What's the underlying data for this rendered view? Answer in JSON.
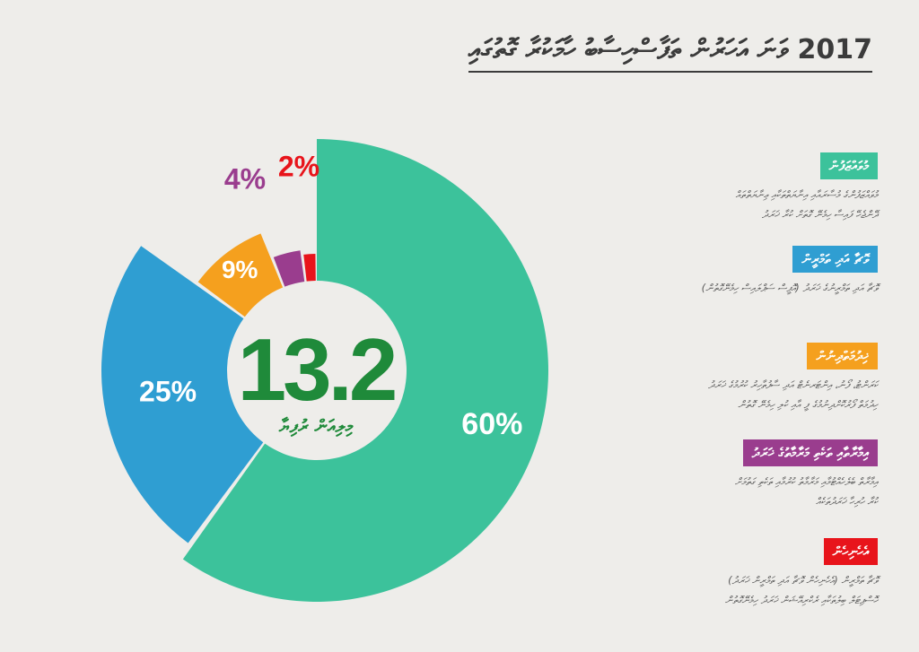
{
  "title": "2017 ވަނަ އަހަރުން ތަފާސްހިސާބު ހާމަކުރާ ގޮތުގައި",
  "colors": {
    "green": "#3cc29b",
    "blue": "#2f9ed2",
    "orange": "#f5a01e",
    "purple": "#9a3d8e",
    "red": "#e8141b",
    "center_text": "#1f8a3a"
  },
  "center": {
    "value": "13.2",
    "label": "މިލިއަން ރުފިޔާ"
  },
  "chart_data": {
    "type": "pie",
    "variant": "exploded-donut",
    "slices": [
      {
        "label": "60%",
        "value": 60,
        "color": "#3cc29b"
      },
      {
        "label": "25%",
        "value": 25,
        "color": "#2f9ed2"
      },
      {
        "label": "9%",
        "value": 9,
        "color": "#f5a01e"
      },
      {
        "label": "4%",
        "value": 4,
        "color": "#9a3d8e"
      },
      {
        "label": "2%",
        "value": 2,
        "color": "#e8141b"
      }
    ]
  },
  "legend": [
    {
      "tag": "މުވައްޒަފުން",
      "color": "#3cc29b",
      "desc": [
        "މުވައްޒަފުންގެ މުސާރައާއި އިނާޔަތްތަކާއި ޢިނާޔަތްތައް",
        "ދޭންޖެހޭ ފައިސާ ހިމެނޭ ގޮތަށް ކުރާ ޚަރަދު"
      ]
    },
    {
      "tag": "ވޮޗާ އަދި ތަމްރީން",
      "color": "#2f9ed2",
      "desc": [
        "ވޮޗާ އަދި ތަމްރީނުގެ ޚަރަދު (އޮފީސް ސަޕްލައިސް ހިމެނޭގޮތުން)"
      ]
    },
    {
      "tag": "ޚިދުމަތްދިނުން",
      "color": "#f5a01e",
      "desc": [
        "ކަރަންޓު، ފޯނު، އިންޓަރނެޓް އަދި ސާފުތާހިރު ކުރުމުގެ ޚަރަދު",
        "ހިދުމަތް ފޯރުކޮށްދިނުމުގެ ފީ އާއި ކުލި ހިމެނޭ ގޮތުން"
      ]
    },
    {
      "tag": "އިމާރާތާއި ތަކެތި މަރާމާތުގެ ޚަރަދު",
      "color": "#9a3d8e",
      "desc": [
        "އިމާރާތް ބެލެހެއްޓުމާއި މަރާމާތު ކުރުމާއި ތަކެތި ގަތުމަށް",
        "ކުރާ ހުރިހާ ޚަރަދުތަކެއް"
      ]
    },
    {
      "tag": "އެހެނިހެން",
      "color": "#e8141b",
      "desc": [
        "ވޮޗާ ތަމްރީން (އެހެނިހެން ވޮޗާ އަދި ތަމްރީން ޚަރަދު)",
        "ހޮސްޕިޓަލް ބިލުތަކާއި ރެކްރިއޭޝަން ޚަރަދު ހިމެނޭގޮތުން"
      ]
    }
  ]
}
